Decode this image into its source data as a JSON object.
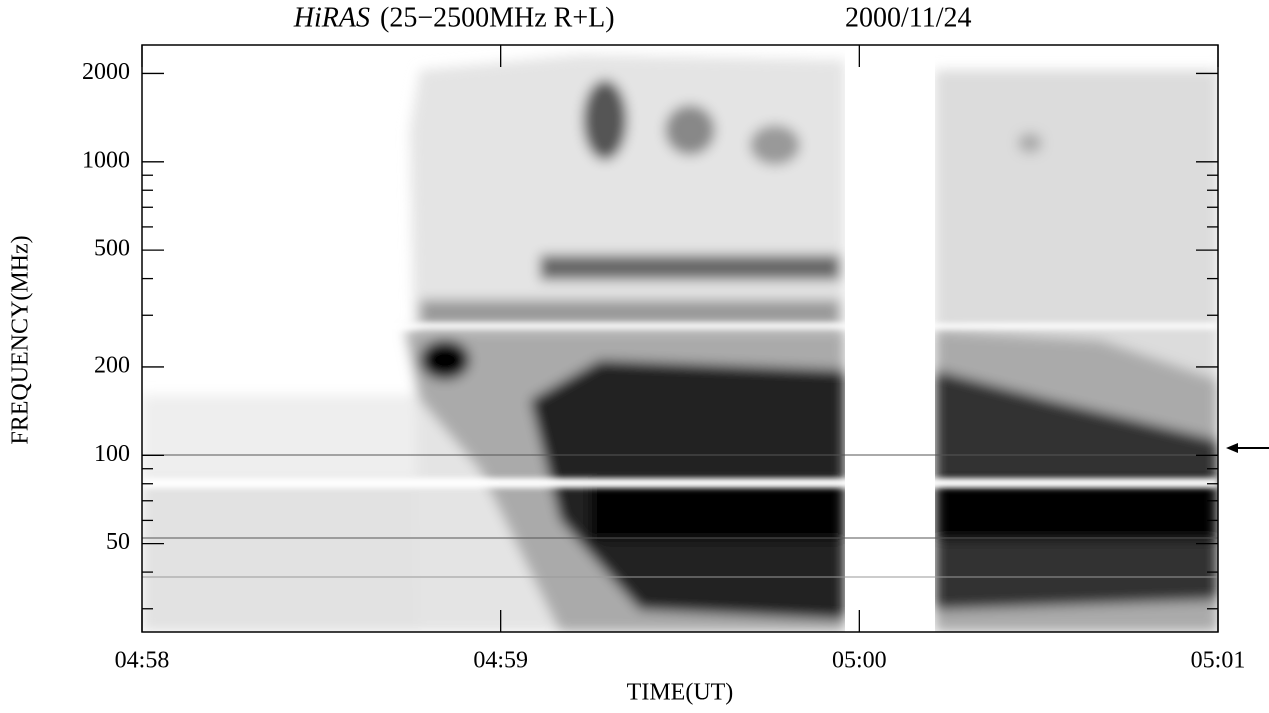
{
  "chart_data": {
    "type": "spectrogram",
    "title": "HiRAS",
    "subtitle": "(25−2500MHz R+L)",
    "date": "2000/11/24",
    "x_label": "TIME(UT)",
    "y_label": "FREQUENCY(MHz)",
    "xlim": [
      "04:58",
      "05:01"
    ],
    "xticks": [
      "04:58",
      "04:59",
      "05:00",
      "05:01"
    ],
    "ylim": [
      25,
      2500
    ],
    "yticks": [
      50,
      100,
      200,
      500,
      1000,
      2000
    ],
    "yminor_ticks": [
      30,
      40,
      60,
      70,
      80,
      90,
      300,
      400,
      600,
      700,
      800,
      900
    ],
    "log_y": true,
    "colormap": "gray"
  }
}
